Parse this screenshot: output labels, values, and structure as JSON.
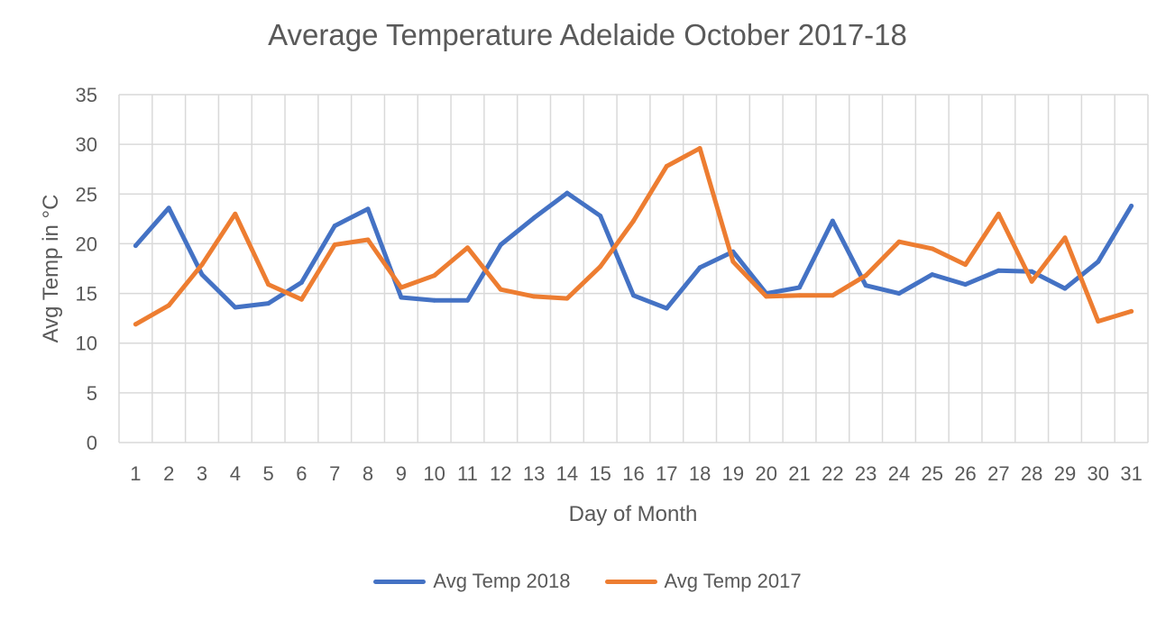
{
  "chart_data": {
    "type": "line",
    "title": "Average Temperature Adelaide October 2017-18",
    "xlabel": "Day of Month",
    "ylabel": "Avg Temp in °C",
    "ylim": [
      0,
      35
    ],
    "yticks": [
      0,
      5,
      10,
      15,
      20,
      25,
      30,
      35
    ],
    "grid": true,
    "legend_position": "bottom",
    "categories": [
      "1",
      "2",
      "3",
      "4",
      "5",
      "6",
      "7",
      "8",
      "9",
      "10",
      "11",
      "12",
      "13",
      "14",
      "15",
      "16",
      "17",
      "18",
      "19",
      "20",
      "21",
      "22",
      "23",
      "24",
      "25",
      "26",
      "27",
      "28",
      "29",
      "30",
      "31"
    ],
    "series": [
      {
        "name": "Avg Temp 2018",
        "color": "#4472C4",
        "values": [
          19.8,
          23.6,
          16.9,
          13.6,
          14.0,
          16.1,
          21.8,
          23.5,
          14.6,
          14.3,
          14.3,
          19.9,
          22.6,
          25.1,
          22.8,
          14.8,
          13.5,
          17.6,
          19.2,
          15.0,
          15.6,
          22.3,
          15.8,
          15.0,
          16.9,
          15.9,
          17.3,
          17.2,
          15.5,
          18.2,
          23.8
        ]
      },
      {
        "name": "Avg Temp 2017",
        "color": "#ED7D31",
        "values": [
          11.9,
          13.8,
          17.9,
          23.0,
          15.9,
          14.4,
          19.9,
          20.4,
          15.6,
          16.8,
          19.6,
          15.4,
          14.7,
          14.5,
          17.7,
          22.3,
          27.8,
          29.6,
          18.2,
          14.7,
          14.8,
          14.8,
          16.8,
          20.2,
          19.5,
          17.9,
          23.0,
          16.2,
          20.6,
          12.2,
          13.2
        ]
      }
    ]
  }
}
